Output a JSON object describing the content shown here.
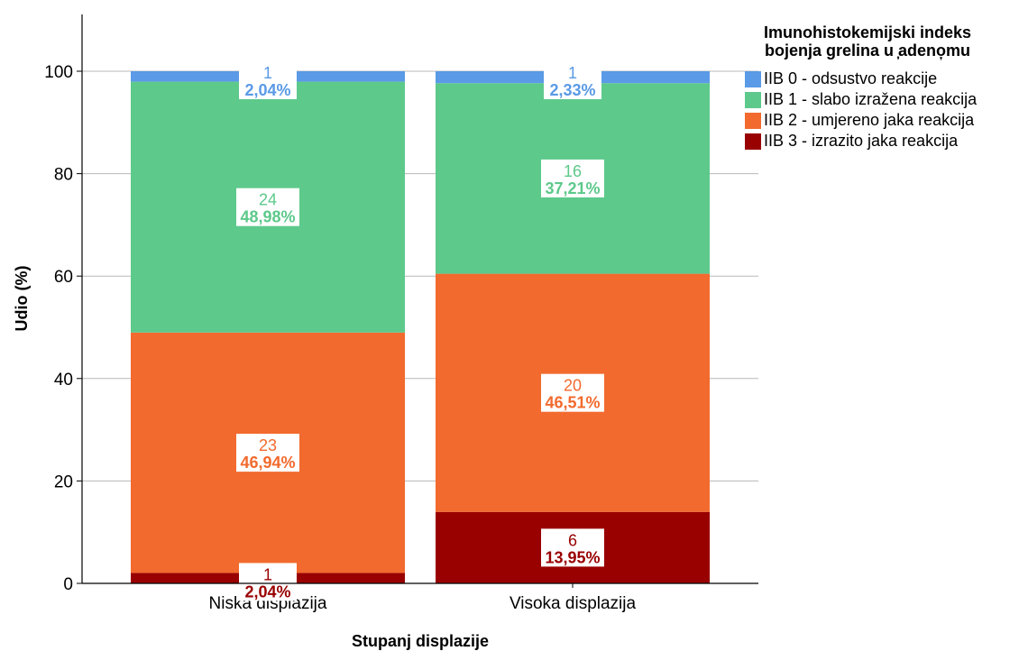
{
  "chart_data": {
    "type": "bar",
    "stacked": true,
    "xlabel": "Stupanj displazije",
    "ylabel": "Udio (%)",
    "ylim": [
      0,
      110
    ],
    "yticks": [
      0,
      20,
      40,
      60,
      80,
      100
    ],
    "grid": true,
    "legend_position": "top-right",
    "categories": [
      "Niska displazija",
      "Visoka displazija"
    ],
    "series": [
      {
        "name": "IIB 3 - izrazito jaka reakcija",
        "color": "#990000",
        "values": [
          2.04,
          13.95
        ],
        "counts": [
          "1",
          "6"
        ],
        "labels": [
          "2,04%",
          "13,95%"
        ]
      },
      {
        "name": "IIB 2 - umjereno jaka reakcija",
        "color": "#F26A2E",
        "values": [
          46.94,
          46.51
        ],
        "counts": [
          "23",
          "20"
        ],
        "labels": [
          "46,94%",
          "46,51%"
        ]
      },
      {
        "name": "IIB 1 - slabo izražena reakcija",
        "color": "#5DC98B",
        "values": [
          48.98,
          37.21
        ],
        "counts": [
          "24",
          "16"
        ],
        "labels": [
          "48,98%",
          "37,21%"
        ]
      },
      {
        "name": "IIB 0 - odsustvo reakcije",
        "color": "#5A9AE6",
        "values": [
          2.04,
          2.33
        ],
        "counts": [
          "1",
          "1"
        ],
        "labels": [
          "2,04%",
          "2,33%"
        ]
      }
    ]
  },
  "legend": {
    "title_line1": "Imunohistokemijski indeks",
    "title_line2": "bojenja grelina u ̦adeno̦mu",
    "items": [
      {
        "label": "IIB 0 - odsustvo reakcije",
        "color": "#5A9AE6"
      },
      {
        "label": "IIB 1 - slabo izražena reakcija",
        "color": "#5DC98B"
      },
      {
        "label": "IIB 2 - umjereno jaka reakcija",
        "color": "#F26A2E"
      },
      {
        "label": "IIB 3 - izrazito jaka reakcija",
        "color": "#990000"
      }
    ]
  }
}
